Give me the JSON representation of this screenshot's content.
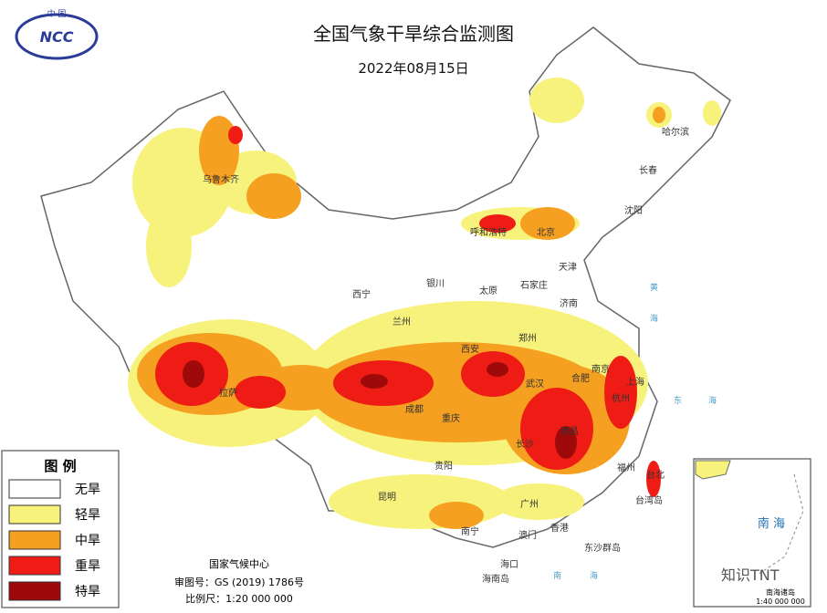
{
  "logo": {
    "country": "中 国",
    "name": "NCC"
  },
  "header": {
    "title": "全国气象干旱综合监测图",
    "date": "2022年08月15日"
  },
  "legend": {
    "title": "图 例",
    "items": [
      {
        "label": "无旱",
        "color": "#ffffff"
      },
      {
        "label": "轻旱",
        "color": "#f7f27c"
      },
      {
        "label": "中旱",
        "color": "#f5a020"
      },
      {
        "label": "重旱",
        "color": "#ee1c14"
      },
      {
        "label": "特旱",
        "color": "#9e0a0a"
      }
    ]
  },
  "cities": [
    "乌鲁木齐",
    "哈尔滨",
    "长春",
    "沈阳",
    "呼和浩特",
    "北京",
    "天津",
    "石家庄",
    "太原",
    "济南",
    "银川",
    "西宁",
    "兰州",
    "西安",
    "郑州",
    "南京",
    "合肥",
    "上海",
    "杭州",
    "武汉",
    "成都",
    "重庆",
    "拉萨",
    "长沙",
    "南昌",
    "福州",
    "台北",
    "贵阳",
    "昆明",
    "广州",
    "南宁",
    "澳门",
    "香港",
    "海口",
    "台湾岛",
    "东沙群岛",
    "海南岛"
  ],
  "seas": [
    "黄",
    "海",
    "东",
    "海",
    "南",
    "海"
  ],
  "footer": {
    "agency": "国家气候中心",
    "approval": "审图号：GS (2019) 1786号",
    "scale": "比例尺：1:20 000 000"
  },
  "inset": {
    "sea": "南 海",
    "islands": "南海诸岛",
    "scale": "1:40 000 000"
  },
  "watermark": "知识TNT"
}
